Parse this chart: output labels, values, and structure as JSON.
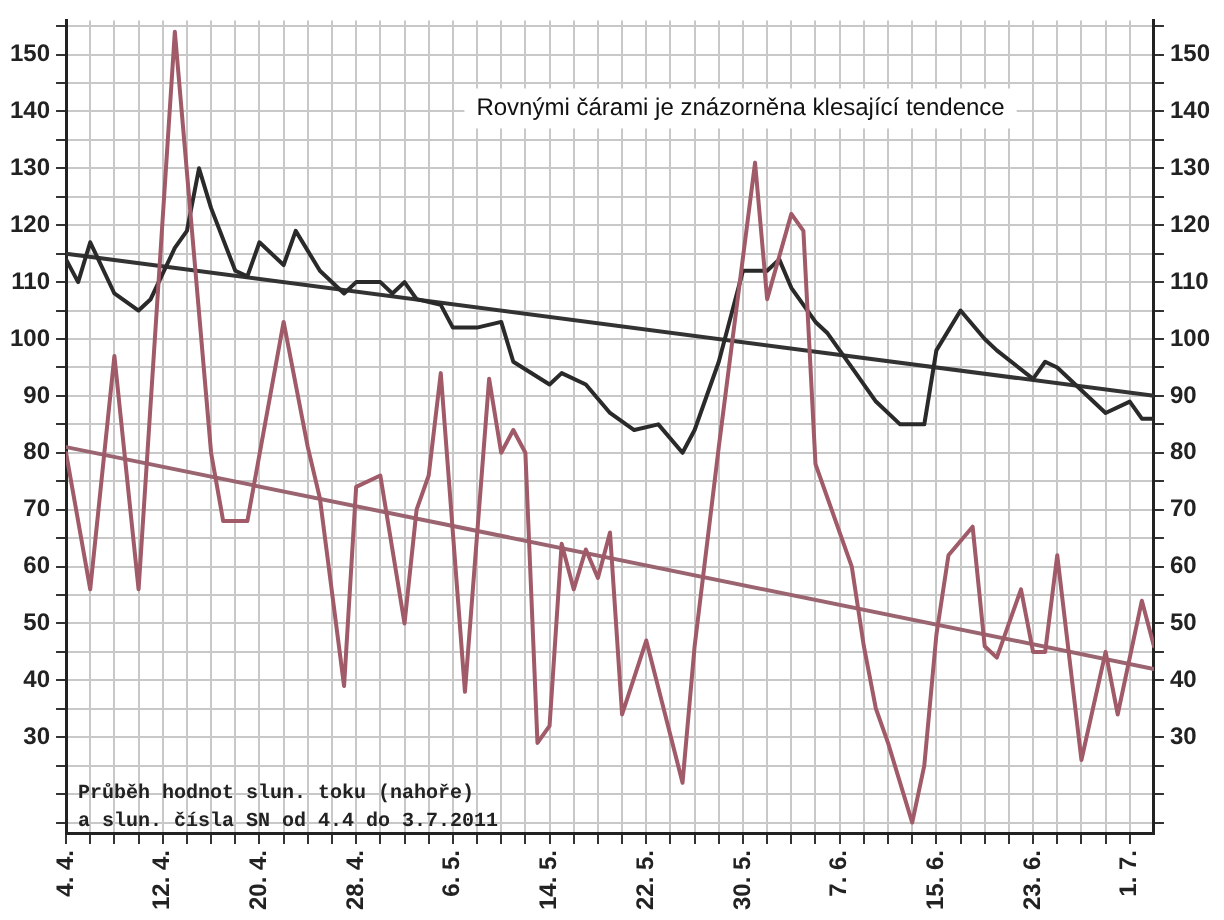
{
  "chart_data": {
    "type": "line",
    "marker": "none",
    "grid": true,
    "legend": false,
    "annotations": [
      "Rovnými čárami je znázorněna klesající tendence",
      "Průběh hodnot slun. toku (nahoře)\na slun. čísla SN od 4.4 do 3.7.2011"
    ],
    "xlim": [
      "--04-04",
      "--07-03"
    ],
    "xticks": [
      {
        "value": "--04-04",
        "label": "4. 4."
      },
      {
        "value": "--04-06",
        "label": null
      },
      {
        "value": "--04-08",
        "label": null
      },
      {
        "value": "--04-10",
        "label": null
      },
      {
        "value": "--04-12",
        "label": "12. 4."
      },
      {
        "value": "--04-14",
        "label": null
      },
      {
        "value": "--04-16",
        "label": null
      },
      {
        "value": "--04-18",
        "label": null
      },
      {
        "value": "--04-20",
        "label": "20. 4."
      },
      {
        "value": "--04-22",
        "label": null
      },
      {
        "value": "--04-24",
        "label": null
      },
      {
        "value": "--04-26",
        "label": null
      },
      {
        "value": "--04-28",
        "label": "28. 4."
      },
      {
        "value": "--04-30",
        "label": null
      },
      {
        "value": "--05-02",
        "label": null
      },
      {
        "value": "--05-04",
        "label": null
      },
      {
        "value": "--05-06",
        "label": "6. 5."
      },
      {
        "value": "--05-08",
        "label": null
      },
      {
        "value": "--05-10",
        "label": null
      },
      {
        "value": "--05-12",
        "label": null
      },
      {
        "value": "--05-14",
        "label": "14. 5."
      },
      {
        "value": "--05-16",
        "label": null
      },
      {
        "value": "--05-18",
        "label": null
      },
      {
        "value": "--05-20",
        "label": null
      },
      {
        "value": "--05-22",
        "label": "22. 5."
      },
      {
        "value": "--05-24",
        "label": null
      },
      {
        "value": "--05-26",
        "label": null
      },
      {
        "value": "--05-28",
        "label": null
      },
      {
        "value": "--05-30",
        "label": "30. 5."
      },
      {
        "value": "--06-01",
        "label": null
      },
      {
        "value": "--06-03",
        "label": null
      },
      {
        "value": "--06-05",
        "label": null
      },
      {
        "value": "--06-07",
        "label": "7. 6."
      },
      {
        "value": "--06-09",
        "label": null
      },
      {
        "value": "--06-11",
        "label": null
      },
      {
        "value": "--06-13",
        "label": null
      },
      {
        "value": "--06-15",
        "label": "15. 6."
      },
      {
        "value": "--06-17",
        "label": null
      },
      {
        "value": "--06-19",
        "label": null
      },
      {
        "value": "--06-21",
        "label": null
      },
      {
        "value": "--06-23",
        "label": "23. 6."
      },
      {
        "value": "--06-25",
        "label": null
      },
      {
        "value": "--06-27",
        "label": null
      },
      {
        "value": "--06-29",
        "label": null
      },
      {
        "value": "--07-01",
        "label": "1. 7."
      }
    ],
    "ylim": [
      13,
      156
    ],
    "yticks": [
      {
        "value": 15,
        "label": null
      },
      {
        "value": 20,
        "label": null
      },
      {
        "value": 25,
        "label": null
      },
      30,
      {
        "value": 35,
        "label": null
      },
      40,
      {
        "value": 45,
        "label": null
      },
      50,
      {
        "value": 55,
        "label": null
      },
      60,
      {
        "value": 65,
        "label": null
      },
      70,
      {
        "value": 75,
        "label": null
      },
      80,
      {
        "value": 85,
        "label": null
      },
      90,
      {
        "value": 95,
        "label": null
      },
      100,
      {
        "value": 105,
        "label": null
      },
      110,
      {
        "value": 115,
        "label": null
      },
      120,
      {
        "value": 125,
        "label": null
      },
      130,
      {
        "value": 135,
        "label": null
      },
      140,
      {
        "value": 145,
        "label": null
      },
      150,
      {
        "value": 155,
        "label": null
      }
    ],
    "y2lim": [
      13,
      156
    ],
    "y2ticks": [
      {
        "value": 15,
        "label": null
      },
      {
        "value": 20,
        "label": null
      },
      {
        "value": 25,
        "label": null
      },
      30,
      {
        "value": 35,
        "label": null
      },
      40,
      {
        "value": 45,
        "label": null
      },
      50,
      {
        "value": 55,
        "label": null
      },
      60,
      {
        "value": 65,
        "label": null
      },
      70,
      {
        "value": 75,
        "label": null
      },
      80,
      {
        "value": 85,
        "label": null
      },
      90,
      {
        "value": 95,
        "label": null
      },
      100,
      {
        "value": 105,
        "label": null
      },
      110,
      {
        "value": 115,
        "label": null
      },
      120,
      {
        "value": 125,
        "label": null
      },
      130,
      {
        "value": 135,
        "label": null
      },
      140,
      {
        "value": 145,
        "label": null
      },
      150,
      {
        "value": 155,
        "label": null
      }
    ],
    "series": [
      {
        "color": "#a05a68",
        "x": [
          "--04-04",
          "--04-06",
          "--04-08",
          "--04-10",
          "--04-13",
          "--04-16",
          "--04-17",
          "--04-19",
          "--04-22",
          "--04-24",
          "--04-25",
          "--04-27",
          "--04-28",
          "--04-30",
          "--05-02",
          "--05-03",
          "--05-04",
          "--05-05",
          "--05-07",
          "--05-09",
          "--05-10",
          "--05-11",
          "--05-12",
          "--05-13",
          "--05-14",
          "--05-15",
          "--05-16",
          "--05-17",
          "--05-18",
          "--05-19",
          "--05-20",
          "--05-22",
          "--05-25",
          "--05-26",
          "--05-28",
          "--05-31",
          "--06-01",
          "--06-03",
          "--06-04",
          "--06-05",
          "--06-06",
          "--06-08",
          "--06-09",
          "--06-10",
          "--06-11",
          "--06-13",
          "--06-14",
          "--06-15",
          "--06-16",
          "--06-18",
          "--06-19",
          "--06-20",
          "--06-22",
          "--06-23",
          "--06-24",
          "--06-25",
          "--06-27",
          "--06-29",
          "--06-30",
          "--07-02",
          "--07-03"
        ],
        "values": [
          80,
          56,
          97,
          56,
          154,
          80,
          68,
          68,
          103,
          81,
          72,
          39,
          74,
          76,
          50,
          70,
          76,
          94,
          38,
          93,
          80,
          84,
          80,
          29,
          32,
          64,
          56,
          63,
          58,
          66,
          34,
          47,
          22,
          46,
          81,
          131,
          107,
          122,
          119,
          78,
          72,
          60,
          46,
          35,
          29,
          15,
          25,
          48,
          62,
          67,
          46,
          44,
          56,
          45,
          45,
          62,
          26,
          45,
          34,
          54,
          46
        ]
      },
      {
        "color": "#2a2a2a",
        "x": [
          "--04-04",
          "--04-05",
          "--04-06",
          "--04-08",
          "--04-10",
          "--04-11",
          "--04-13",
          "--04-14",
          "--04-15",
          "--04-16",
          "--04-18",
          "--04-19",
          "--04-20",
          "--04-22",
          "--04-23",
          "--04-25",
          "--04-27",
          "--04-28",
          "--04-30",
          "--05-01",
          "--05-02",
          "--05-03",
          "--05-05",
          "--05-06",
          "--05-08",
          "--05-10",
          "--05-11",
          "--05-14",
          "--05-15",
          "--05-17",
          "--05-19",
          "--05-21",
          "--05-23",
          "--05-25",
          "--05-26",
          "--05-28",
          "--05-30",
          "--06-01",
          "--06-02",
          "--06-03",
          "--06-05",
          "--06-06",
          "--06-08",
          "--06-10",
          "--06-12",
          "--06-14",
          "--06-15",
          "--06-17",
          "--06-19",
          "--06-20",
          "--06-23",
          "--06-24",
          "--06-25",
          "--06-27",
          "--06-29",
          "--07-01",
          "--07-02",
          "--07-03"
        ],
        "values": [
          114,
          110,
          117,
          108,
          105,
          107,
          116,
          119,
          130,
          123,
          112,
          111,
          117,
          113,
          119,
          112,
          108,
          110,
          110,
          108,
          110,
          107,
          106,
          102,
          102,
          103,
          96,
          92,
          94,
          92,
          87,
          84,
          85,
          80,
          84,
          96,
          112,
          112,
          114,
          109,
          103,
          101,
          95,
          89,
          85,
          85,
          98,
          105,
          100,
          98,
          93,
          96,
          95,
          91,
          87,
          89,
          86,
          86
        ]
      },
      {
        "color": "#333333",
        "x": [
          "--04-04",
          "--07-03"
        ],
        "values": [
          115,
          90
        ]
      },
      {
        "color": "#9a6470",
        "x": [
          "--04-04",
          "--07-03"
        ],
        "values": [
          81,
          42
        ]
      }
    ]
  }
}
